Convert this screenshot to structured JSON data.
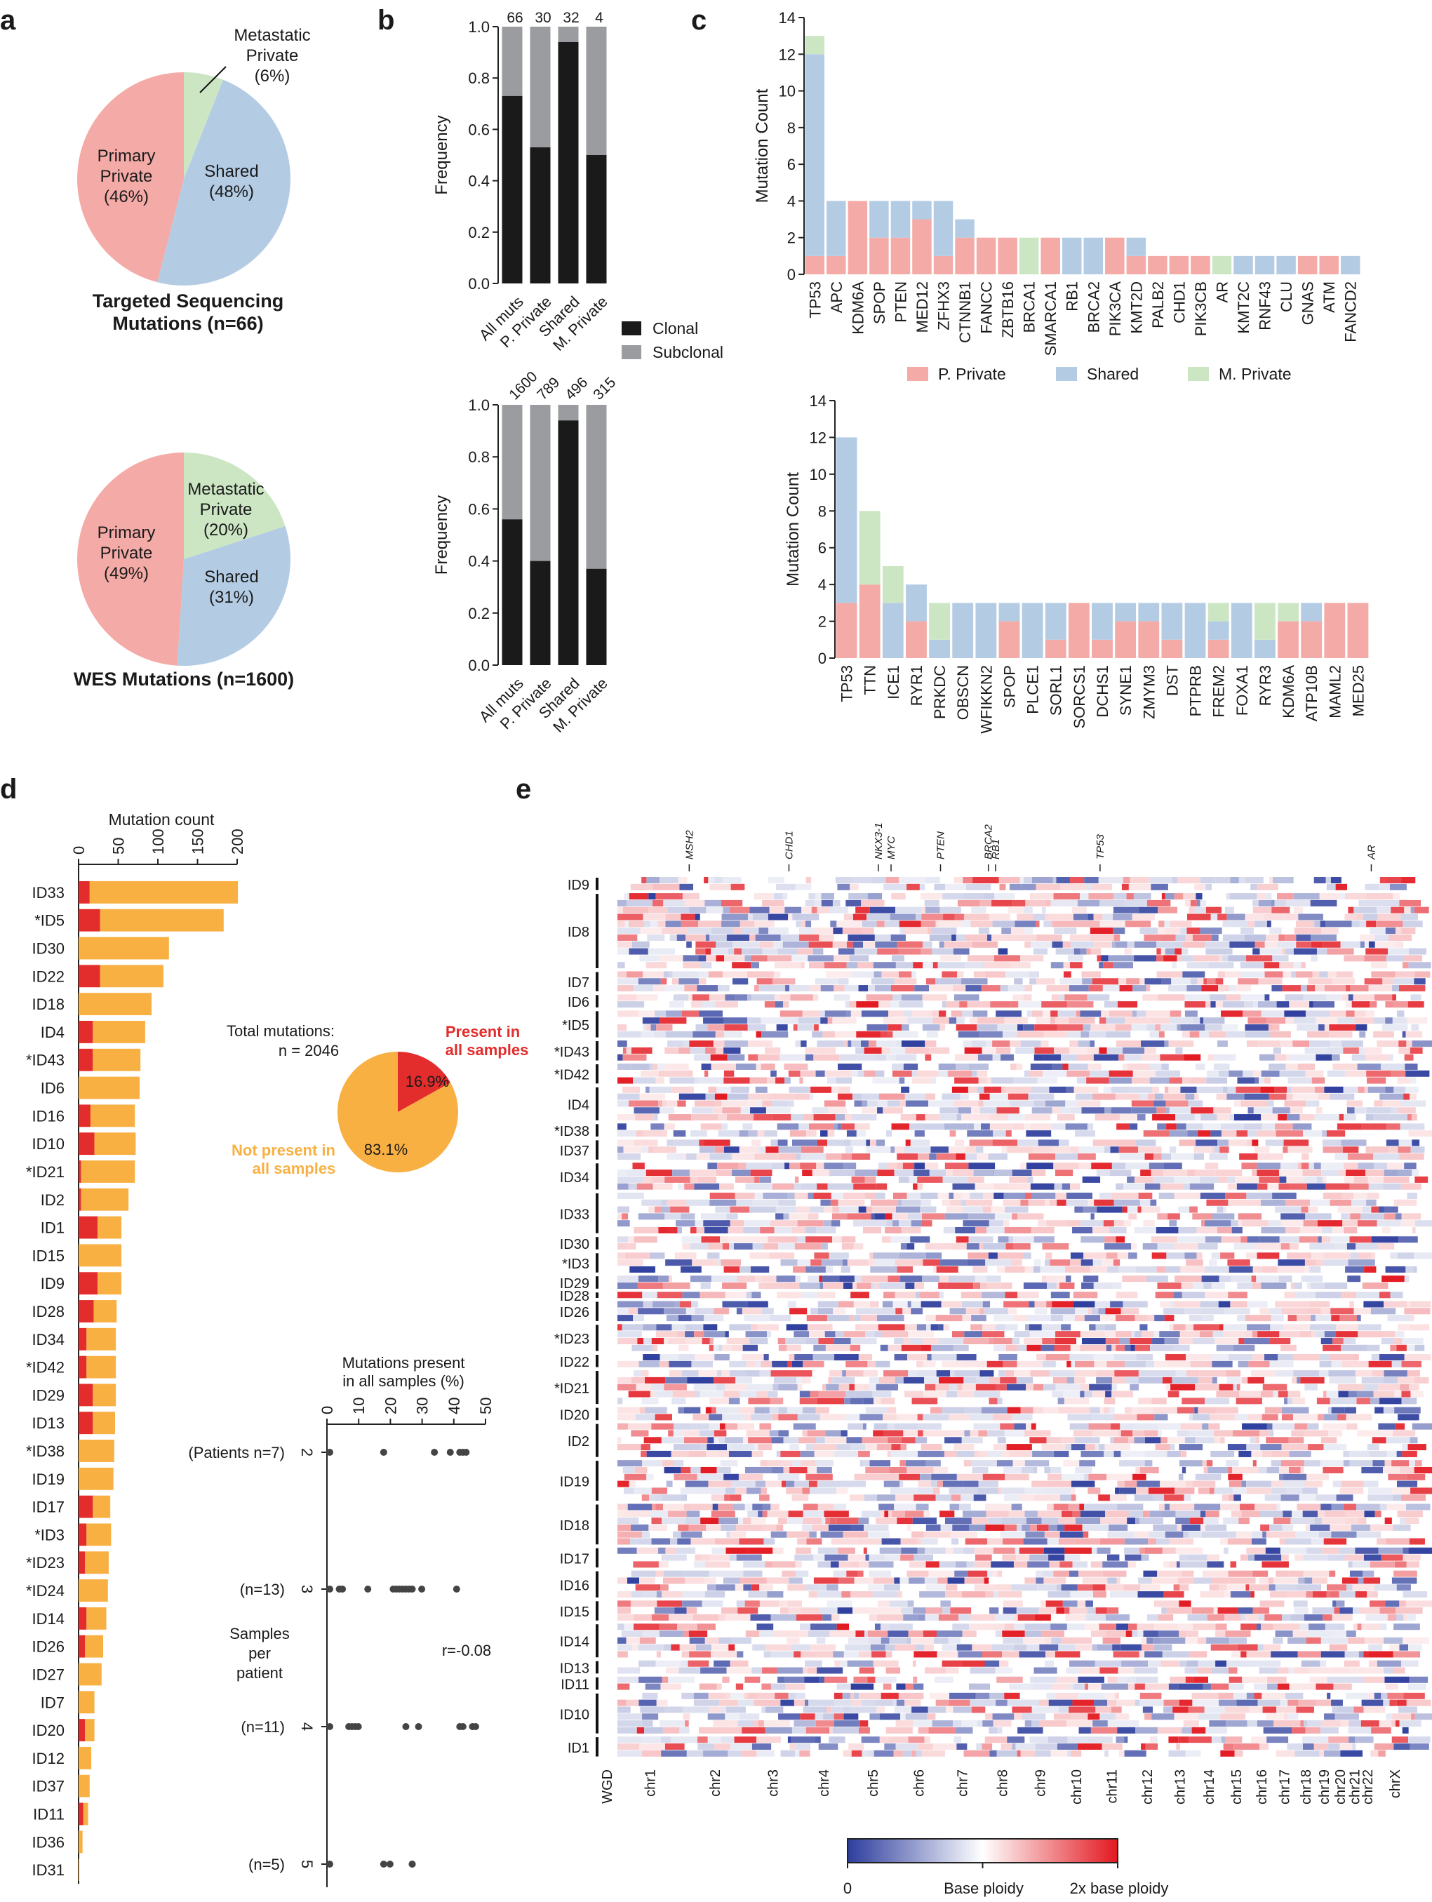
{
  "colors": {
    "primary_private": "#f4aaa6",
    "shared": "#b3cce4",
    "metastatic_private": "#cce6c4",
    "clonal": "#1a1a1a",
    "subclonal": "#9a9c9f",
    "orange": "#f9b043",
    "red": "#e32c2c",
    "cnv_low": "#2f3f9e",
    "cnv_high": "#e31b23"
  },
  "panel_labels": {
    "a": "a",
    "b": "b",
    "c": "c",
    "d": "d",
    "e": "e"
  },
  "panel_a": {
    "pie1": {
      "caption_line1": "Targeted Sequencing",
      "caption_line2": "Mutations (n=66)",
      "slices": [
        {
          "name": "Metastatic Private",
          "label_lines": [
            "Metastatic",
            "Private",
            "(6%)"
          ],
          "pct": 6,
          "color": "#cce6c4"
        },
        {
          "name": "Shared",
          "label_lines": [
            "Shared",
            "(48%)"
          ],
          "pct": 48,
          "color": "#b3cce4"
        },
        {
          "name": "Primary Private",
          "label_lines": [
            "Primary",
            "Private",
            "(46%)"
          ],
          "pct": 46,
          "color": "#f4aaa6"
        }
      ]
    },
    "pie2": {
      "caption_line1": "WES Mutations (n=1600)",
      "slices": [
        {
          "name": "Metastatic Private",
          "label_lines": [
            "Metastatic",
            "Private",
            "(20%)"
          ],
          "pct": 20,
          "color": "#cce6c4"
        },
        {
          "name": "Shared",
          "label_lines": [
            "Shared",
            "(31%)"
          ],
          "pct": 31,
          "color": "#b3cce4"
        },
        {
          "name": "Primary Private",
          "label_lines": [
            "Primary",
            "Private",
            "(49%)"
          ],
          "pct": 49,
          "color": "#f4aaa6"
        }
      ]
    }
  },
  "chart_data": [
    {
      "id": "b_top",
      "type": "bar",
      "stacked": true,
      "categories": [
        "All muts",
        "P. Private",
        "Shared",
        "M. Private"
      ],
      "top_labels": [
        "66",
        "30",
        "32",
        "4"
      ],
      "series": [
        {
          "name": "Clonal",
          "values": [
            0.73,
            0.53,
            0.94,
            0.5
          ]
        },
        {
          "name": "Subclonal",
          "values": [
            0.27,
            0.47,
            0.06,
            0.5
          ]
        }
      ],
      "ylabel": "Frequency",
      "yticks": [
        "0.0",
        "0.2",
        "0.4",
        "0.6",
        "0.8",
        "1.0"
      ],
      "ylim": [
        0,
        1
      ],
      "legend": [
        "Clonal",
        "Subclonal"
      ]
    },
    {
      "id": "b_bottom",
      "type": "bar",
      "stacked": true,
      "categories": [
        "All muts",
        "P. Private",
        "Shared",
        "M. Private"
      ],
      "top_labels": [
        "1600",
        "789",
        "496",
        "315"
      ],
      "series": [
        {
          "name": "Clonal",
          "values": [
            0.56,
            0.4,
            0.94,
            0.37
          ]
        },
        {
          "name": "Subclonal",
          "values": [
            0.44,
            0.6,
            0.06,
            0.63
          ]
        }
      ],
      "ylabel": "Frequency",
      "yticks": [
        "0.0",
        "0.2",
        "0.4",
        "0.6",
        "0.8",
        "1.0"
      ],
      "ylim": [
        0,
        1
      ]
    },
    {
      "id": "c_top",
      "type": "bar",
      "stacked": true,
      "ylabel": "Mutation Count",
      "yticks": [
        "0",
        "2",
        "4",
        "6",
        "8",
        "10",
        "12",
        "14"
      ],
      "ylim": [
        0,
        14
      ],
      "categories": [
        "TP53",
        "APC",
        "KDM6A",
        "SPOP",
        "PTEN",
        "MED12",
        "ZFHX3",
        "CTNNB1",
        "FANCC",
        "ZBTB16",
        "BRCA1",
        "SMARCA1",
        "RB1",
        "BRCA2",
        "PIK3CA",
        "KMT2D",
        "PALB2",
        "CHD1",
        "PIK3CB",
        "AR",
        "KMT2C",
        "RNF43",
        "CLU",
        "GNAS",
        "ATM",
        "FANCD2"
      ],
      "series": [
        {
          "name": "P. Private",
          "values": [
            1,
            1,
            4,
            2,
            2,
            3,
            1,
            2,
            2,
            2,
            0,
            2,
            0,
            0,
            2,
            1,
            1,
            1,
            1,
            0,
            0,
            0,
            0,
            1,
            1,
            0
          ]
        },
        {
          "name": "Shared",
          "values": [
            11,
            3,
            0,
            2,
            2,
            1,
            3,
            1,
            0,
            0,
            0,
            0,
            2,
            2,
            0,
            1,
            0,
            0,
            0,
            0,
            1,
            1,
            1,
            0,
            0,
            1
          ]
        },
        {
          "name": "M. Private",
          "values": [
            1,
            0,
            0,
            0,
            0,
            0,
            0,
            0,
            0,
            0,
            2,
            0,
            0,
            0,
            0,
            0,
            0,
            0,
            0,
            1,
            0,
            0,
            0,
            0,
            0,
            0
          ]
        }
      ],
      "legend": [
        "P. Private",
        "Shared",
        "M. Private"
      ]
    },
    {
      "id": "c_bottom",
      "type": "bar",
      "stacked": true,
      "ylabel": "Mutation Count",
      "yticks": [
        "0",
        "2",
        "4",
        "6",
        "8",
        "10",
        "12",
        "14"
      ],
      "ylim": [
        0,
        14
      ],
      "categories": [
        "TP53",
        "TTN",
        "ICE1",
        "RYR1",
        "PRKDC",
        "OBSCN",
        "WFIKKN2",
        "SPOP",
        "PLCE1",
        "SORL1",
        "SORCS1",
        "DCHS1",
        "SYNE1",
        "ZMYM3",
        "DST",
        "PTPRB",
        "FREM2",
        "FOXA1",
        "RYR3",
        "KDM6A",
        "ATP10B",
        "MAML2",
        "MED25"
      ],
      "series": [
        {
          "name": "P. Private",
          "values": [
            3,
            4,
            0,
            2,
            0,
            0,
            0,
            2,
            0,
            1,
            3,
            1,
            2,
            2,
            1,
            0,
            1,
            0,
            0,
            2,
            2,
            3,
            3
          ]
        },
        {
          "name": "Shared",
          "values": [
            9,
            0,
            3,
            2,
            1,
            3,
            3,
            1,
            3,
            2,
            0,
            2,
            1,
            1,
            2,
            3,
            1,
            3,
            1,
            0,
            1,
            0,
            0
          ]
        },
        {
          "name": "M. Private",
          "values": [
            0,
            4,
            2,
            0,
            2,
            0,
            0,
            0,
            0,
            0,
            0,
            0,
            0,
            0,
            0,
            0,
            1,
            0,
            2,
            1,
            0,
            0,
            0
          ]
        }
      ]
    },
    {
      "id": "d_bar",
      "type": "bar",
      "orientation": "horizontal",
      "stacked": true,
      "xlabel": "Mutation count",
      "xticks": [
        "0",
        "50",
        "100",
        "150",
        "200"
      ],
      "xlim": [
        0,
        200
      ],
      "categories": [
        "ID33",
        "*ID5",
        "ID30",
        "ID22",
        "ID18",
        "ID4",
        "*ID43",
        "ID6",
        "ID16",
        "ID10",
        "*ID21",
        "ID2",
        "ID1",
        "ID15",
        "ID9",
        "ID28",
        "ID34",
        "*ID42",
        "ID29",
        "ID13",
        "*ID38",
        "ID19",
        "ID17",
        "*ID3",
        "*ID23",
        "*ID24",
        "ID14",
        "ID26",
        "ID27",
        "ID7",
        "ID20",
        "ID12",
        "ID37",
        "ID11",
        "ID36",
        "ID31"
      ],
      "series": [
        {
          "name": "Present in all samples",
          "values": [
            14,
            27,
            0,
            27,
            0,
            18,
            18,
            0,
            15,
            20,
            3,
            3,
            24,
            0,
            24,
            19,
            10,
            10,
            18,
            18,
            0,
            0,
            18,
            10,
            8,
            0,
            10,
            8,
            0,
            0,
            8,
            0,
            0,
            6,
            0,
            0
          ]
        },
        {
          "name": "Not present in all samples",
          "values": [
            187,
            156,
            114,
            80,
            92,
            66,
            60,
            77,
            56,
            52,
            68,
            60,
            30,
            54,
            30,
            29,
            37,
            37,
            29,
            28,
            45,
            44,
            22,
            31,
            30,
            37,
            25,
            23,
            29,
            20,
            12,
            16,
            14,
            6,
            5,
            1
          ]
        }
      ]
    },
    {
      "id": "d_pie",
      "type": "pie",
      "title_line1": "Total mutations:",
      "title_line2": "n = 2046",
      "slices": [
        {
          "name": "Present in all samples",
          "label_lines": [
            "Present in",
            "all samples"
          ],
          "pct_label": "16.9%",
          "pct": 16.9
        },
        {
          "name": "Not present in all samples",
          "label_lines": [
            "Not present in",
            "all samples"
          ],
          "pct_label": "83.1%",
          "pct": 83.1
        }
      ]
    },
    {
      "id": "d_dot",
      "type": "scatter",
      "xlabel_line1": "Mutations present",
      "xlabel_line2": "in all samples (%)",
      "xticks": [
        "0",
        "10",
        "20",
        "30",
        "40",
        "50"
      ],
      "xlim": [
        0,
        50
      ],
      "ylabel_lines": [
        "Samples",
        "per",
        "patient"
      ],
      "groups": [
        {
          "samples": "2",
          "label": "(Patients n=7)",
          "values": [
            0,
            17,
            33,
            38,
            41,
            42,
            43
          ]
        },
        {
          "samples": "3",
          "label": "(n=13)",
          "values": [
            0,
            3,
            4,
            12,
            20,
            21,
            22,
            23,
            24,
            25,
            26,
            29,
            40
          ]
        },
        {
          "samples": "4",
          "label": "(n=11)",
          "values": [
            0,
            6,
            7,
            8,
            9,
            24,
            28,
            41,
            42,
            45,
            46
          ]
        },
        {
          "samples": "5",
          "label": "(n=5)",
          "values": [
            0,
            17,
            19,
            26,
            26
          ]
        }
      ],
      "annotation": "r=-0.08"
    }
  ],
  "panel_e": {
    "genes": [
      "MSH2",
      "CHD1",
      "NKX3-1",
      "MYC",
      "PTEN",
      "BRCA2",
      "RB1",
      "TP53",
      "AR"
    ],
    "samples": [
      "ID9",
      "ID8",
      "ID7",
      "ID6",
      "*ID5",
      "*ID43",
      "*ID42",
      "ID4",
      "*ID38",
      "ID37",
      "ID34",
      "ID33",
      "ID30",
      "*ID3",
      "ID29",
      "ID28",
      "ID26",
      "*ID23",
      "ID22",
      "*ID21",
      "ID20",
      "ID2",
      "ID19",
      "ID18",
      "ID17",
      "ID16",
      "ID15",
      "ID14",
      "ID13",
      "ID11",
      "ID10",
      "ID1"
    ],
    "chromosomes": [
      "chr1",
      "chr2",
      "chr3",
      "chr4",
      "chr5",
      "chr6",
      "chr7",
      "chr8",
      "chr9",
      "chr10",
      "chr11",
      "chr12",
      "chr13",
      "chr14",
      "chr15",
      "chr16",
      "chr17",
      "chr18",
      "chr19",
      "chr20",
      "chr21",
      "chr22",
      "chrX"
    ],
    "wgd_label": "WGD",
    "colorbar_labels": [
      "0",
      "Base ploidy",
      "2x base ploidy"
    ]
  }
}
